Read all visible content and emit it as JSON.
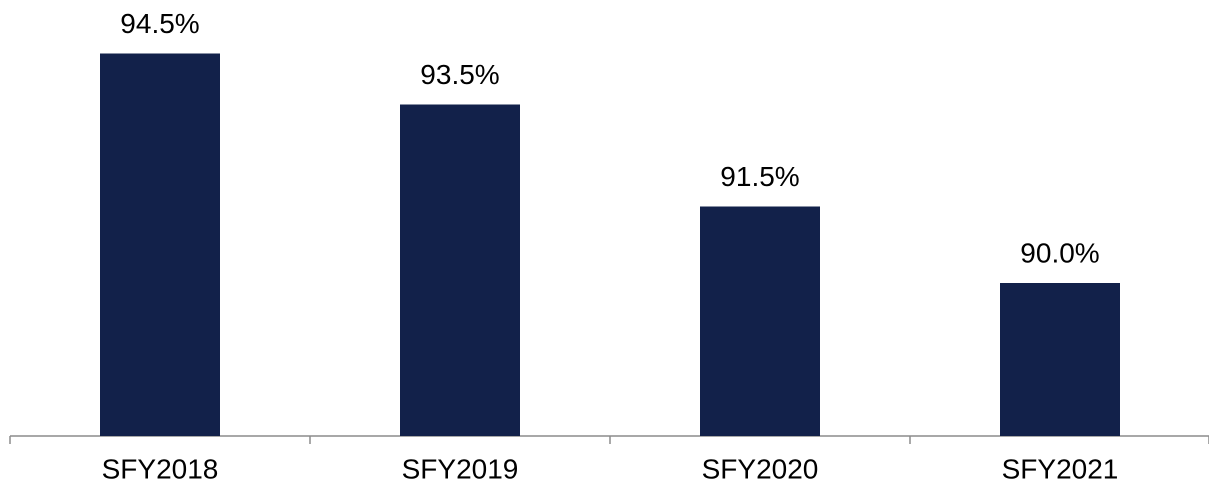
{
  "chart_data": {
    "type": "bar",
    "categories": [
      "SFY2018",
      "SFY2019",
      "SFY2020",
      "SFY2021"
    ],
    "values": [
      94.5,
      93.5,
      91.5,
      90.0
    ],
    "value_labels": [
      "94.5%",
      "93.5%",
      "91.5%",
      "90.0%"
    ],
    "color": "#12214a",
    "ylim": [
      87,
      95
    ]
  }
}
